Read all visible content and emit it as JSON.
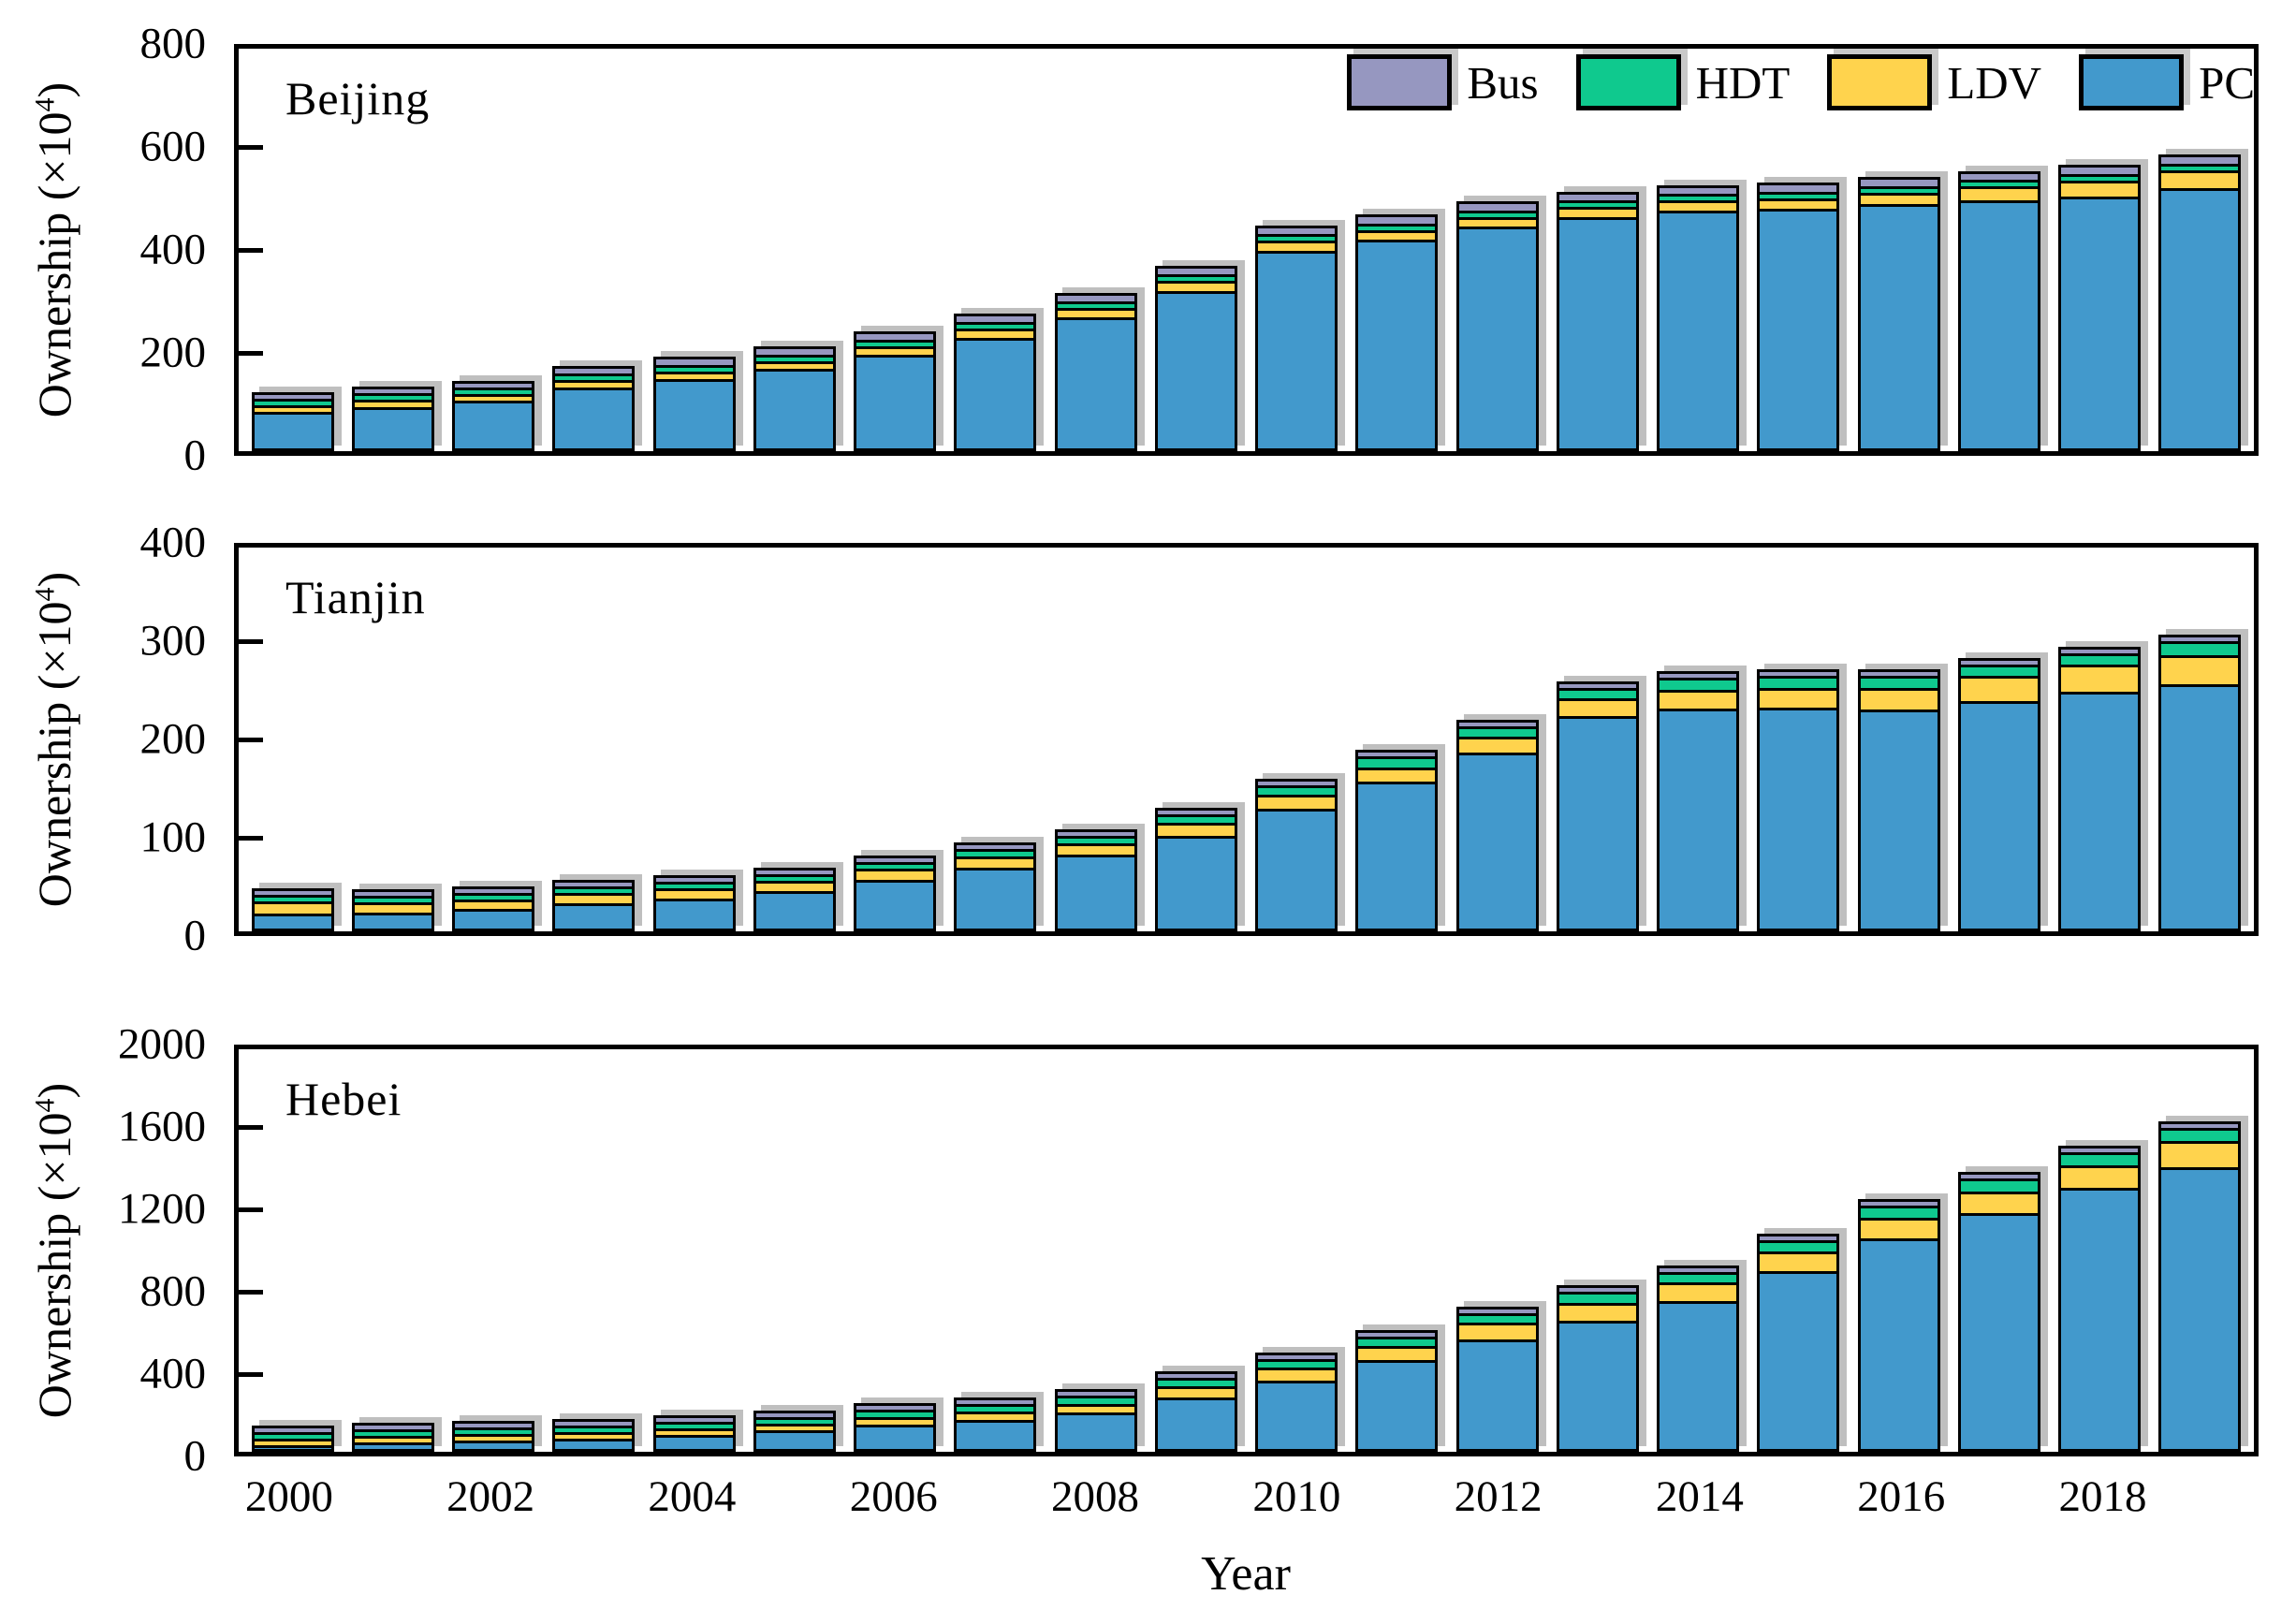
{
  "figure": {
    "xlabel": "Year",
    "xticks": [
      "2000",
      "2002",
      "2004",
      "2006",
      "2008",
      "2010",
      "2012",
      "2014",
      "2016",
      "2018"
    ],
    "ylabel": "Ownership (×10⁴)",
    "ylabel_prefix": "Ownership (×10",
    "ylabel_sup": "4",
    "ylabel_suffix": ")"
  },
  "legend": {
    "position": "top-right",
    "items": [
      {
        "label": "Bus",
        "color": "#9697C0"
      },
      {
        "label": "HDT",
        "color": "#0FC98E"
      },
      {
        "label": "LDV",
        "color": "#FFD34D"
      },
      {
        "label": "PC",
        "color": "#4299CC"
      }
    ]
  },
  "chart_data": [
    {
      "type": "bar",
      "stacked": true,
      "region": "Beijing",
      "title": "Beijing",
      "xlabel": "Year",
      "ylabel": "Ownership (×10⁴)",
      "ylim": [
        0,
        800
      ],
      "yticks": [
        0,
        200,
        400,
        600,
        800
      ],
      "grid": false,
      "categories": [
        2000,
        2001,
        2002,
        2003,
        2004,
        2005,
        2006,
        2007,
        2008,
        2009,
        2010,
        2011,
        2012,
        2013,
        2014,
        2015,
        2016,
        2017,
        2018,
        2019
      ],
      "series": [
        {
          "name": "PC",
          "color": "#4299CC",
          "values": [
            78,
            88,
            100,
            126,
            143,
            163,
            192,
            226,
            266,
            318,
            398,
            420,
            446,
            466,
            478,
            482,
            492,
            498,
            506,
            522
          ]
        },
        {
          "name": "LDV",
          "color": "#FFD34D",
          "values": [
            14,
            14,
            14,
            15,
            15,
            16,
            17,
            18,
            19,
            20,
            20,
            20,
            20,
            19,
            20,
            21,
            22,
            28,
            32,
            36
          ]
        },
        {
          "name": "HDT",
          "color": "#0FC98E",
          "values": [
            5,
            5,
            5,
            6,
            6,
            6,
            6,
            7,
            7,
            8,
            8,
            8,
            8,
            8,
            9,
            9,
            10,
            12,
            12,
            12
          ]
        },
        {
          "name": "Bus",
          "color": "#9697C0",
          "values": [
            10,
            12,
            13,
            15,
            16,
            17,
            17,
            17,
            17,
            17,
            18,
            18,
            18,
            18,
            18,
            18,
            18,
            18,
            18,
            18
          ]
        }
      ]
    },
    {
      "type": "bar",
      "stacked": true,
      "region": "Tianjin",
      "title": "Tianjin",
      "xlabel": "Year",
      "ylabel": "Ownership (×10⁴)",
      "ylim": [
        0,
        400
      ],
      "yticks": [
        0,
        100,
        200,
        300,
        400
      ],
      "grid": false,
      "categories": [
        2000,
        2001,
        2002,
        2003,
        2004,
        2005,
        2006,
        2007,
        2008,
        2009,
        2010,
        2011,
        2012,
        2013,
        2014,
        2015,
        2016,
        2017,
        2018,
        2019
      ],
      "series": [
        {
          "name": "PC",
          "color": "#4299CC",
          "values": [
            19,
            20,
            23,
            29,
            34,
            42,
            54,
            66,
            80,
            100,
            128,
            156,
            186,
            224,
            232,
            233,
            231,
            240,
            250,
            258
          ]
        },
        {
          "name": "LDV",
          "color": "#FFD34D",
          "values": [
            12,
            10,
            10,
            11,
            11,
            11,
            11,
            12,
            12,
            13,
            14,
            15,
            17,
            19,
            20,
            21,
            23,
            26,
            28,
            30
          ]
        },
        {
          "name": "HDT",
          "color": "#0FC98E",
          "values": [
            7,
            7,
            7,
            7,
            7,
            7,
            7,
            8,
            8,
            9,
            10,
            11,
            11,
            11,
            12,
            12,
            12,
            12,
            12,
            14
          ]
        },
        {
          "name": "Bus",
          "color": "#9697C0",
          "values": [
            7,
            6,
            6,
            6,
            6,
            6,
            6,
            6,
            6,
            6,
            6,
            6,
            6,
            6,
            6,
            6,
            6,
            6,
            6,
            6
          ]
        }
      ]
    },
    {
      "type": "bar",
      "stacked": true,
      "region": "Hebei",
      "title": "Hebei",
      "xlabel": "Year",
      "ylabel": "Ownership (×10⁴)",
      "ylim": [
        0,
        2000
      ],
      "yticks": [
        0,
        400,
        800,
        1200,
        1600,
        2000
      ],
      "grid": false,
      "categories": [
        2000,
        2001,
        2002,
        2003,
        2004,
        2005,
        2006,
        2007,
        2008,
        2009,
        2010,
        2011,
        2012,
        2013,
        2014,
        2015,
        2016,
        2017,
        2018,
        2019
      ],
      "series": [
        {
          "name": "PC",
          "color": "#4299CC",
          "values": [
            25,
            45,
            55,
            65,
            85,
            105,
            135,
            160,
            195,
            270,
            355,
            455,
            560,
            650,
            750,
            900,
            1060,
            1185,
            1310,
            1415
          ]
        },
        {
          "name": "LDV",
          "color": "#FFD34D",
          "values": [
            20,
            25,
            28,
            30,
            32,
            35,
            38,
            40,
            42,
            55,
            62,
            70,
            80,
            90,
            90,
            95,
            105,
            110,
            115,
            130
          ]
        },
        {
          "name": "HDT",
          "color": "#0FC98E",
          "values": [
            18,
            25,
            27,
            30,
            32,
            34,
            36,
            38,
            40,
            42,
            45,
            47,
            50,
            55,
            55,
            55,
            60,
            65,
            65,
            65
          ]
        },
        {
          "name": "Bus",
          "color": "#9697C0",
          "values": [
            12,
            15,
            15,
            15,
            16,
            16,
            16,
            17,
            18,
            18,
            18,
            18,
            20,
            20,
            20,
            20,
            20,
            20,
            20,
            20
          ]
        }
      ]
    }
  ]
}
